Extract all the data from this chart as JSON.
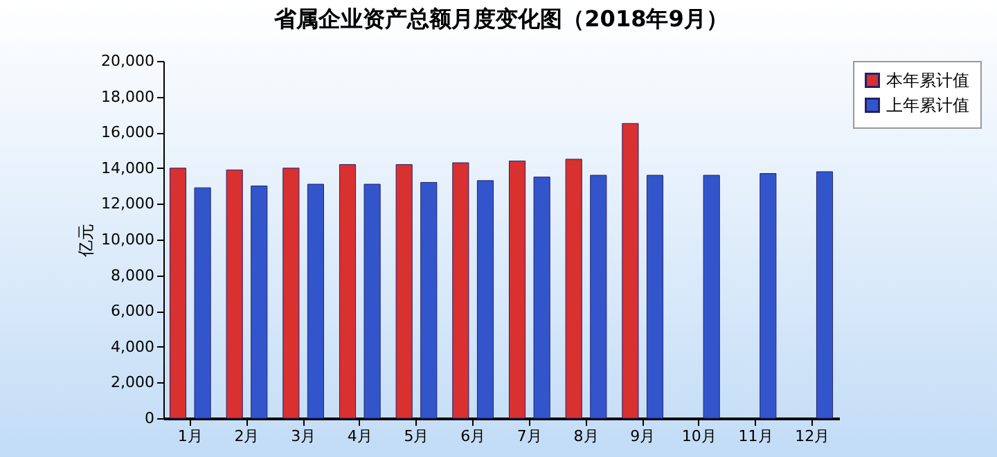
{
  "chart_data": {
    "type": "bar",
    "title": "省属企业资产总额月度变化图（2018年9月）",
    "ylabel": "亿元",
    "categories": [
      "1月",
      "2月",
      "3月",
      "4月",
      "5月",
      "6月",
      "7月",
      "8月",
      "9月",
      "10月",
      "11月",
      "12月"
    ],
    "series": [
      {
        "name": "本年累计值",
        "color": "#d93030",
        "values": [
          14000,
          13900,
          14000,
          14200,
          14200,
          14300,
          14400,
          14500,
          16500,
          null,
          null,
          null
        ]
      },
      {
        "name": "上年累计值",
        "color": "#3355cc",
        "values": [
          12900,
          13000,
          13100,
          13100,
          13200,
          13300,
          13500,
          13600,
          13600,
          13600,
          13700,
          13800
        ]
      }
    ],
    "ylim": [
      0,
      20000
    ],
    "yticks": [
      0,
      {
        "value": 2000,
        "label": "2,000"
      },
      {
        "value": 4000,
        "label": "4,000"
      },
      {
        "value": 6000,
        "label": "6,000"
      },
      {
        "value": 8000,
        "label": "8,000"
      },
      {
        "value": 10000,
        "label": "10,000"
      },
      {
        "value": 12000,
        "label": "12,000"
      },
      {
        "value": 14000,
        "label": "14,000"
      },
      {
        "value": 16000,
        "label": "16,000"
      },
      {
        "value": 18000,
        "label": "18,000"
      },
      {
        "value": 20000,
        "label": "20,000"
      }
    ],
    "grid": false,
    "legend": "right"
  }
}
